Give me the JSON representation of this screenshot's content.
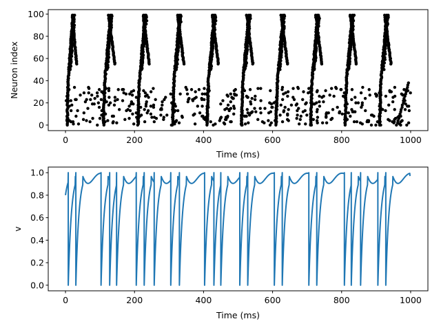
{
  "chart_data": [
    {
      "type": "scatter",
      "title": "",
      "xlabel": "Time (ms)",
      "ylabel": "Neuron index",
      "xlim": [
        -50,
        1050
      ],
      "ylim": [
        -5,
        104
      ],
      "xticks": [
        0,
        200,
        400,
        600,
        800,
        1000
      ],
      "yticks": [
        0,
        20,
        40,
        60,
        80,
        100
      ],
      "grid": false,
      "legend": "none",
      "marker_color": "#000000",
      "series": [
        {
          "description_free": true,
          "burst_onsets_ms": [
            0,
            105,
            205,
            305,
            405,
            505,
            605,
            705,
            805,
            905
          ],
          "sweep_end_ms": [
            30,
            150,
            250,
            350,
            450,
            550,
            650,
            750,
            850,
            950
          ],
          "neurons": 100,
          "t_max_ms": 1000
        }
      ]
    },
    {
      "type": "line",
      "title": "",
      "xlabel": "Time (ms)",
      "ylabel": "v",
      "xlim": [
        -50,
        1050
      ],
      "ylim": [
        -0.05,
        1.05
      ],
      "xticks": [
        0,
        200,
        400,
        600,
        800,
        1000
      ],
      "yticks": [
        0,
        0.2,
        0.4,
        0.6,
        0.8,
        1.0
      ],
      "ytick_labels": [
        "0.0",
        "0.2",
        "0.4",
        "0.6",
        "0.8",
        "1.0"
      ],
      "grid": false,
      "legend": "none",
      "line_color": "#1f77b4",
      "spike_times_ms": [
        8,
        30,
        103,
        128,
        148,
        205,
        228,
        257,
        305,
        330,
        403,
        430,
        450,
        505,
        528,
        605,
        628,
        705,
        728,
        808,
        828,
        855,
        905,
        928
      ],
      "start_value": 0.8,
      "end_time_ms": 998,
      "end_value": 0.97
    }
  ]
}
